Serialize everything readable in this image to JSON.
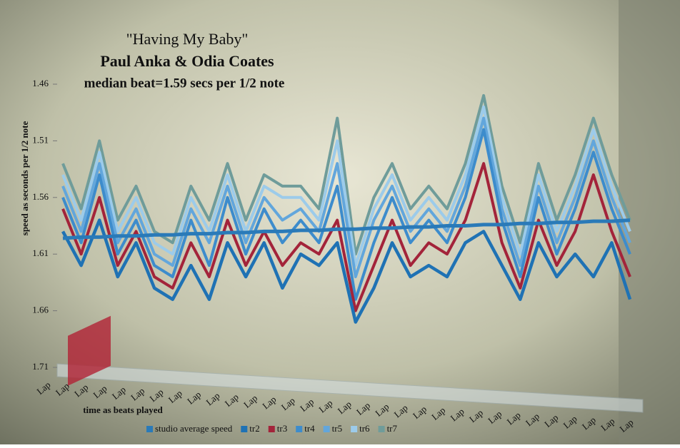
{
  "chart_data": {
    "type": "line",
    "title": [
      "\"Having My Baby\"",
      "Paul Anka & Odia Coates",
      "median beat=1.59 secs per 1/2 note"
    ],
    "y_label": "speed as seconds per 1/2 note",
    "x_label": "time as beats played",
    "categories": [
      "Lap",
      "Lap",
      "Lap",
      "Lap",
      "Lap",
      "Lap",
      "Lap",
      "Lap",
      "Lap",
      "Lap",
      "Lap",
      "Lap",
      "Lap",
      "Lap",
      "Lap",
      "Lap",
      "Lap",
      "Lap",
      "Lap",
      "Lap",
      "Lap",
      "Lap",
      "Lap",
      "Lap",
      "Lap",
      "Lap",
      "Lap",
      "Lap",
      "Lap",
      "Lap",
      "Lap",
      "Lap"
    ],
    "ylim": [
      1.46,
      1.71
    ],
    "reverse_y": true,
    "yticks": [
      1.46,
      1.51,
      1.56,
      1.61,
      1.66,
      1.71
    ],
    "grid": false,
    "legend": "bottom",
    "series": [
      {
        "name": "studio average speed",
        "color": "#2a7ab8",
        "values": [
          1.596,
          1.595,
          1.595,
          1.594,
          1.594,
          1.593,
          1.593,
          1.592,
          1.592,
          1.591,
          1.591,
          1.59,
          1.59,
          1.589,
          1.589,
          1.588,
          1.588,
          1.587,
          1.587,
          1.586,
          1.586,
          1.585,
          1.585,
          1.584,
          1.584,
          1.583,
          1.583,
          1.582,
          1.582,
          1.581,
          1.581,
          1.58
        ]
      },
      {
        "name": "tr2",
        "color": "#1f72b4",
        "values": [
          1.59,
          1.62,
          1.58,
          1.63,
          1.6,
          1.64,
          1.65,
          1.62,
          1.65,
          1.6,
          1.63,
          1.6,
          1.64,
          1.61,
          1.62,
          1.6,
          1.67,
          1.64,
          1.6,
          1.63,
          1.62,
          1.63,
          1.6,
          1.59,
          1.62,
          1.65,
          1.6,
          1.63,
          1.61,
          1.63,
          1.6,
          1.65
        ]
      },
      {
        "name": "tr3",
        "color": "#a3243a",
        "values": [
          1.57,
          1.61,
          1.56,
          1.62,
          1.59,
          1.63,
          1.64,
          1.6,
          1.63,
          1.58,
          1.62,
          1.59,
          1.62,
          1.6,
          1.61,
          1.58,
          1.66,
          1.62,
          1.58,
          1.62,
          1.6,
          1.61,
          1.58,
          1.53,
          1.6,
          1.64,
          1.58,
          1.62,
          1.59,
          1.54,
          1.59,
          1.63
        ]
      },
      {
        "name": "tr4",
        "color": "#3d8ccc",
        "values": [
          1.56,
          1.6,
          1.54,
          1.61,
          1.58,
          1.62,
          1.63,
          1.58,
          1.62,
          1.56,
          1.61,
          1.57,
          1.6,
          1.58,
          1.6,
          1.55,
          1.65,
          1.6,
          1.56,
          1.6,
          1.58,
          1.6,
          1.56,
          1.5,
          1.58,
          1.63,
          1.56,
          1.61,
          1.57,
          1.52,
          1.57,
          1.61
        ]
      },
      {
        "name": "tr5",
        "color": "#62a6dc",
        "values": [
          1.55,
          1.59,
          1.53,
          1.6,
          1.57,
          1.61,
          1.62,
          1.57,
          1.6,
          1.55,
          1.6,
          1.56,
          1.58,
          1.57,
          1.59,
          1.53,
          1.63,
          1.58,
          1.55,
          1.59,
          1.57,
          1.59,
          1.55,
          1.49,
          1.57,
          1.62,
          1.55,
          1.6,
          1.56,
          1.51,
          1.56,
          1.6
        ]
      },
      {
        "name": "tr6",
        "color": "#9ccbea",
        "values": [
          1.54,
          1.58,
          1.52,
          1.59,
          1.56,
          1.6,
          1.61,
          1.56,
          1.59,
          1.54,
          1.59,
          1.55,
          1.56,
          1.56,
          1.58,
          1.51,
          1.62,
          1.57,
          1.54,
          1.58,
          1.56,
          1.58,
          1.54,
          1.48,
          1.56,
          1.61,
          1.54,
          1.59,
          1.55,
          1.5,
          1.55,
          1.59
        ]
      },
      {
        "name": "tr7",
        "color": "#6f9c9a",
        "values": [
          1.53,
          1.57,
          1.51,
          1.58,
          1.55,
          1.59,
          1.6,
          1.55,
          1.58,
          1.53,
          1.58,
          1.54,
          1.55,
          1.55,
          1.57,
          1.49,
          1.61,
          1.56,
          1.53,
          1.57,
          1.55,
          1.57,
          1.53,
          1.47,
          1.55,
          1.6,
          1.53,
          1.58,
          1.54,
          1.49,
          1.54,
          1.58
        ]
      }
    ]
  }
}
